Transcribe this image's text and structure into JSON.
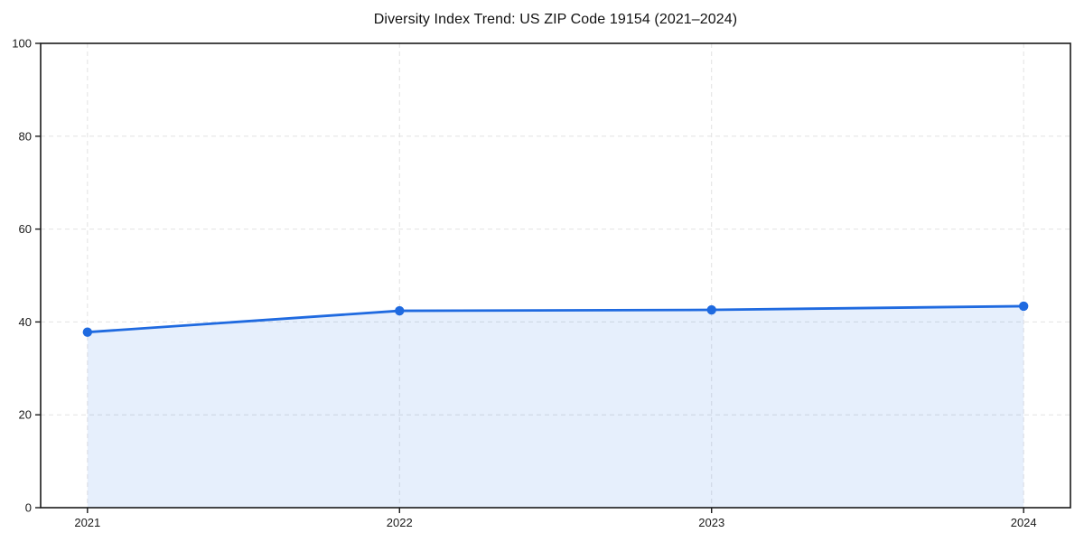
{
  "figure": {
    "background": "#ffffff"
  },
  "chart_data": {
    "type": "area",
    "title": "Diversity Index Trend: US ZIP Code 19154 (2021–2024)",
    "xlabel": "",
    "ylabel": "",
    "x": [
      2021,
      2022,
      2023,
      2024
    ],
    "series": [
      {
        "name": "Diversity Index",
        "values": [
          37.8,
          42.4,
          42.6,
          43.4
        ]
      }
    ],
    "xticks": [
      "2021",
      "2022",
      "2023",
      "2024"
    ],
    "yticks": [
      0,
      20,
      40,
      60,
      80,
      100
    ],
    "xlim": [
      2020.85,
      2024.15
    ],
    "ylim": [
      0,
      100
    ],
    "grid": true,
    "grid_style": "dashed",
    "legend": "none",
    "colors": {
      "line": "#1f6ae0",
      "marker": "#1f6ae0",
      "fill": "rgba(31,106,224,0.11)",
      "grid": "#e2e2e2",
      "spine": "#1a1a1a",
      "tick_text": "#1a1a1a",
      "title_text": "#111111"
    }
  }
}
